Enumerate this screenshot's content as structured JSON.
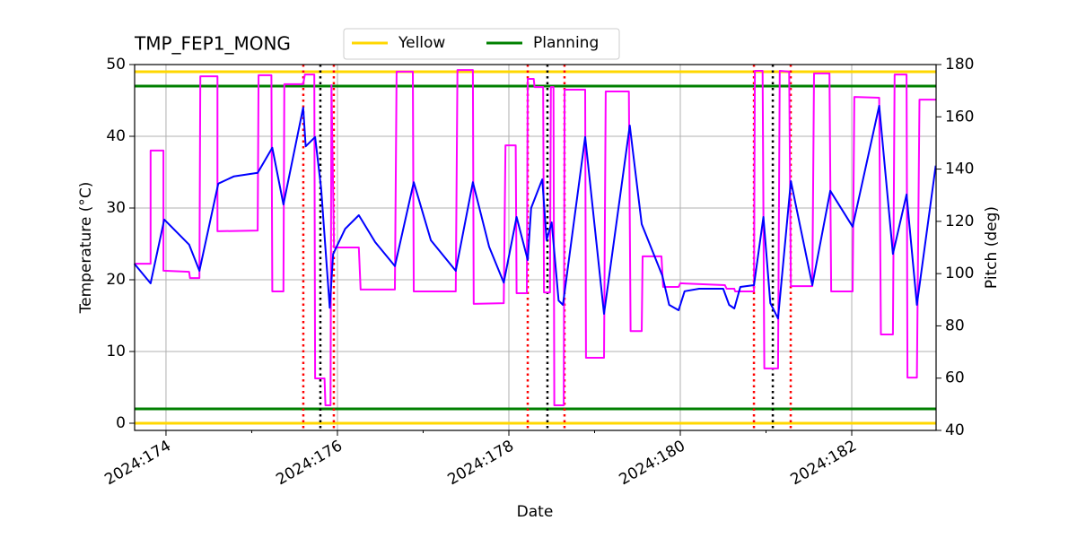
{
  "chart_data": {
    "type": "line",
    "title": "TMP_FEP1_MONG",
    "x_label": "Date",
    "y_label": "Temperature (°C)",
    "y2_label": "Pitch (deg)",
    "y2_color": "#ff00ff",
    "xlim": [
      173.634,
      182.984
    ],
    "xticks": [
      {
        "value": 174,
        "label": "2024:174"
      },
      {
        "value": 176,
        "label": "2024:176"
      },
      {
        "value": 178,
        "label": "2024:178"
      },
      {
        "value": 180,
        "label": "2024:180"
      },
      {
        "value": 182,
        "label": "2024:182"
      }
    ],
    "xminorticks": [
      175,
      177,
      179,
      181
    ],
    "ylim": [
      -1,
      50
    ],
    "yticks": [
      0,
      10,
      20,
      30,
      40,
      50
    ],
    "y2lim": [
      40,
      180
    ],
    "y2ticks": [
      40,
      60,
      80,
      100,
      120,
      140,
      160,
      180
    ],
    "grid": true,
    "legend": "top",
    "limit_lines": [
      {
        "name": "Yellow",
        "color": "#ffd700",
        "values": [
          0,
          49
        ]
      },
      {
        "name": "Planning",
        "color": "#008000",
        "values": [
          2,
          47
        ]
      }
    ],
    "vlines": [
      {
        "color": "#ff0000",
        "style": "dotted",
        "x": [
          175.602,
          175.958,
          178.22,
          178.649,
          180.859,
          181.288
        ]
      },
      {
        "color": "#000000",
        "style": "dotted",
        "x": [
          175.801,
          178.45,
          181.079
        ]
      }
    ],
    "series": [
      {
        "color": "#0000ff",
        "axis": "y",
        "x": [
          173.63,
          173.82,
          173.98,
          174.27,
          174.39,
          174.61,
          174.79,
          175.07,
          175.24,
          175.37,
          175.6,
          175.63,
          175.74,
          175.81,
          175.91,
          175.95,
          176.09,
          176.25,
          176.44,
          176.67,
          176.89,
          177.09,
          177.38,
          177.58,
          177.77,
          177.94,
          178.09,
          178.22,
          178.26,
          178.39,
          178.44,
          178.5,
          178.58,
          178.63,
          178.89,
          179.11,
          179.41,
          179.55,
          179.79,
          179.87,
          179.98,
          180.05,
          180.22,
          180.5,
          180.57,
          180.63,
          180.7,
          180.86,
          180.97,
          181.05,
          181.14,
          181.29,
          181.54,
          181.75,
          182.01,
          182.32,
          182.48,
          182.64,
          182.76,
          182.98
        ],
        "values": [
          22.25,
          19.5,
          28.4,
          24.9,
          21.25,
          33.4,
          34.4,
          34.9,
          38.4,
          30.5,
          44,
          38.6,
          39.9,
          32.75,
          16.1,
          23.6,
          27.1,
          29,
          25.25,
          21.9,
          33.6,
          25.5,
          21.25,
          33.6,
          24.6,
          19.6,
          28.75,
          22.75,
          30,
          34,
          25.5,
          28,
          17.1,
          16.5,
          39.9,
          15.25,
          41.5,
          27.75,
          20.6,
          16.5,
          15.75,
          18.4,
          18.75,
          18.75,
          16.5,
          16,
          19,
          19.25,
          28.75,
          16.75,
          14.6,
          33.75,
          19.25,
          32.4,
          27.4,
          44.25,
          23.6,
          31.9,
          16.5,
          35.9
        ]
      },
      {
        "color": "#ff00ff",
        "axis": "y2",
        "x": [
          173.63,
          173.82,
          173.82,
          173.97,
          173.97,
          174.27,
          174.28,
          174.39,
          174.4,
          174.6,
          174.6,
          175.07,
          175.08,
          175.23,
          175.24,
          175.37,
          175.38,
          175.6,
          175.62,
          175.73,
          175.74,
          175.85,
          175.86,
          175.92,
          175.93,
          175.96,
          176.25,
          176.27,
          176.67,
          176.69,
          176.88,
          176.89,
          177.38,
          177.4,
          177.58,
          177.59,
          177.94,
          177.96,
          178.08,
          178.09,
          178.21,
          178.22,
          178.29,
          178.3,
          178.4,
          178.41,
          178.48,
          178.49,
          178.52,
          178.53,
          178.64,
          178.65,
          178.89,
          178.9,
          179.11,
          179.13,
          179.4,
          179.42,
          179.55,
          179.56,
          179.78,
          179.8,
          179.98,
          180,
          180.52,
          180.54,
          180.63,
          180.64,
          180.86,
          180.87,
          180.96,
          180.98,
          181.14,
          181.16,
          181.27,
          181.29,
          181.54,
          181.56,
          181.74,
          181.76,
          182.01,
          182.03,
          182.32,
          182.34,
          182.48,
          182.5,
          182.64,
          182.65,
          182.76,
          182.79,
          182.98
        ],
        "values": [
          103.8,
          103.8,
          147.1,
          147.1,
          101.1,
          100.7,
          98.3,
          98.3,
          175.5,
          175.5,
          116.2,
          116.5,
          175.9,
          175.9,
          93.2,
          93.2,
          172.5,
          172.5,
          176.2,
          176.2,
          59.9,
          59.9,
          49.6,
          49.6,
          172.1,
          110,
          110,
          93.9,
          93.9,
          177.3,
          177.3,
          93.2,
          93.2,
          177.9,
          177.9,
          88.4,
          88.7,
          149.1,
          149.1,
          92.5,
          92.5,
          174.5,
          174.5,
          171.4,
          171.4,
          92.8,
          92.8,
          171.4,
          171.4,
          49.6,
          49.6,
          170.4,
          170.4,
          67.8,
          67.8,
          169.7,
          169.7,
          78,
          78,
          106.6,
          106.6,
          94.9,
          94.9,
          96.3,
          95.6,
          94.2,
          94.2,
          93.2,
          93.2,
          177.6,
          177.6,
          63.7,
          63.7,
          177.6,
          177.3,
          95.2,
          95.2,
          176.6,
          176.6,
          93.2,
          93.2,
          167.6,
          167.3,
          76.7,
          76.7,
          176.2,
          176.2,
          60.2,
          60.2,
          166.6,
          166.6
        ]
      }
    ]
  }
}
